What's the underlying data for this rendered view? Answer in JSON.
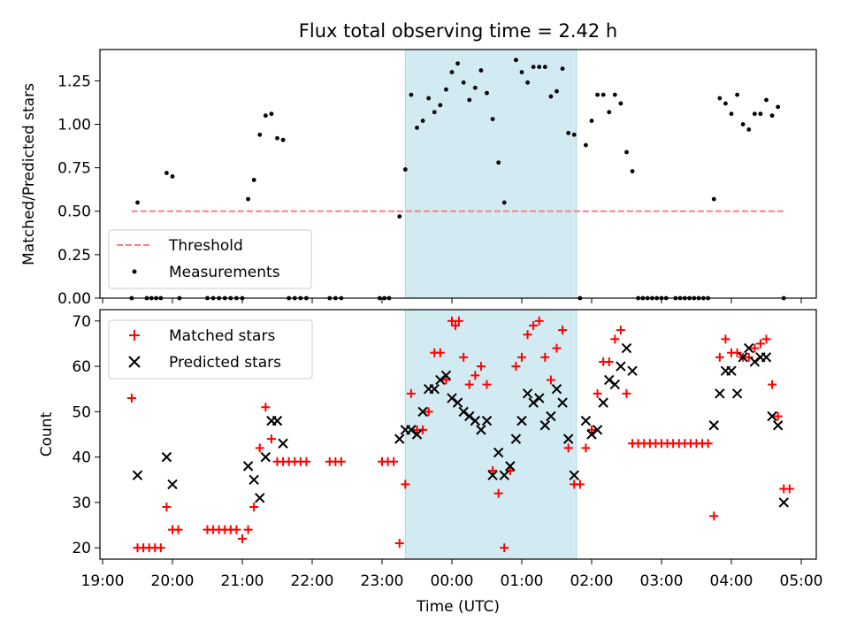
{
  "figure": {
    "title": "Flux total observing time = 2.42 h",
    "xlabel": "Time (UTC)",
    "x_ticks": [
      "19:00",
      "20:00",
      "21:00",
      "22:00",
      "23:00",
      "00:00",
      "01:00",
      "02:00",
      "03:00",
      "04:00",
      "05:00"
    ],
    "shaded_region": {
      "start": "23:20",
      "end": "01:47",
      "color": "#add8e6"
    }
  },
  "chart_data": [
    {
      "type": "scatter",
      "ylabel": "Matched/Predicted stars",
      "ylim": [
        0,
        1.43
      ],
      "y_ticks": [
        "0.00",
        "0.25",
        "0.50",
        "0.75",
        "1.00",
        "1.25"
      ],
      "legend": {
        "placement": "lower-left",
        "entries": [
          "Threshold",
          "Measurements"
        ]
      },
      "threshold": {
        "name": "Threshold",
        "value": 0.5,
        "x_range": [
          "19:25",
          "04:45"
        ],
        "color": "#ff7f7f",
        "style": "dashed"
      },
      "measurements": {
        "name": "Measurements",
        "color": "#000000",
        "points": [
          [
            "19:25",
            0.0
          ],
          [
            "19:30",
            0.55
          ],
          [
            "19:38",
            0.0
          ],
          [
            "19:42",
            0.0
          ],
          [
            "19:46",
            0.0
          ],
          [
            "19:50",
            0.0
          ],
          [
            "19:55",
            0.72
          ],
          [
            "20:00",
            0.7
          ],
          [
            "20:06",
            0.0
          ],
          [
            "20:30",
            0.0
          ],
          [
            "20:35",
            0.0
          ],
          [
            "20:40",
            0.0
          ],
          [
            "20:45",
            0.0
          ],
          [
            "20:50",
            0.0
          ],
          [
            "20:55",
            0.0
          ],
          [
            "21:00",
            0.0
          ],
          [
            "21:05",
            0.57
          ],
          [
            "21:10",
            0.68
          ],
          [
            "21:15",
            0.94
          ],
          [
            "21:20",
            1.05
          ],
          [
            "21:25",
            1.06
          ],
          [
            "21:30",
            0.92
          ],
          [
            "21:35",
            0.91
          ],
          [
            "21:40",
            0.0
          ],
          [
            "21:45",
            0.0
          ],
          [
            "21:50",
            0.0
          ],
          [
            "21:55",
            0.0
          ],
          [
            "22:15",
            0.0
          ],
          [
            "22:20",
            0.0
          ],
          [
            "22:25",
            0.0
          ],
          [
            "22:58",
            0.0
          ],
          [
            "23:02",
            0.0
          ],
          [
            "23:06",
            0.0
          ],
          [
            "23:15",
            0.47
          ],
          [
            "23:20",
            0.74
          ],
          [
            "23:25",
            1.17
          ],
          [
            "23:30",
            0.98
          ],
          [
            "23:35",
            1.02
          ],
          [
            "23:40",
            1.15
          ],
          [
            "23:45",
            1.07
          ],
          [
            "23:50",
            1.11
          ],
          [
            "23:55",
            1.2
          ],
          [
            "00:00",
            1.3
          ],
          [
            "00:05",
            1.35
          ],
          [
            "00:10",
            1.24
          ],
          [
            "00:15",
            1.14
          ],
          [
            "00:20",
            1.21
          ],
          [
            "00:25",
            1.31
          ],
          [
            "00:30",
            1.18
          ],
          [
            "00:35",
            1.03
          ],
          [
            "00:40",
            0.78
          ],
          [
            "00:45",
            0.55
          ],
          [
            "00:55",
            1.37
          ],
          [
            "01:00",
            1.3
          ],
          [
            "01:05",
            1.24
          ],
          [
            "01:10",
            1.33
          ],
          [
            "01:15",
            1.33
          ],
          [
            "01:20",
            1.33
          ],
          [
            "01:25",
            1.16
          ],
          [
            "01:30",
            1.19
          ],
          [
            "01:35",
            1.32
          ],
          [
            "01:40",
            0.95
          ],
          [
            "01:45",
            0.94
          ],
          [
            "01:50",
            0.0
          ],
          [
            "01:55",
            0.88
          ],
          [
            "02:00",
            1.02
          ],
          [
            "02:05",
            1.17
          ],
          [
            "02:10",
            1.17
          ],
          [
            "02:15",
            1.07
          ],
          [
            "02:20",
            1.17
          ],
          [
            "02:25",
            1.12
          ],
          [
            "02:30",
            0.84
          ],
          [
            "02:35",
            0.73
          ],
          [
            "02:40",
            0.0
          ],
          [
            "02:44",
            0.0
          ],
          [
            "02:48",
            0.0
          ],
          [
            "02:52",
            0.0
          ],
          [
            "02:56",
            0.0
          ],
          [
            "03:00",
            0.0
          ],
          [
            "03:04",
            0.0
          ],
          [
            "03:12",
            0.0
          ],
          [
            "03:16",
            0.0
          ],
          [
            "03:20",
            0.0
          ],
          [
            "03:24",
            0.0
          ],
          [
            "03:28",
            0.0
          ],
          [
            "03:32",
            0.0
          ],
          [
            "03:36",
            0.0
          ],
          [
            "03:40",
            0.0
          ],
          [
            "03:45",
            0.57
          ],
          [
            "03:50",
            1.15
          ],
          [
            "03:55",
            1.12
          ],
          [
            "04:00",
            1.06
          ],
          [
            "04:05",
            1.17
          ],
          [
            "04:10",
            1.0
          ],
          [
            "04:15",
            0.97
          ],
          [
            "04:20",
            1.06
          ],
          [
            "04:25",
            1.06
          ],
          [
            "04:30",
            1.14
          ],
          [
            "04:35",
            1.05
          ],
          [
            "04:40",
            1.1
          ],
          [
            "04:45",
            0.0
          ]
        ]
      }
    },
    {
      "type": "scatter",
      "ylabel": "Count",
      "ylim": [
        17.5,
        72.5
      ],
      "y_ticks": [
        "20",
        "30",
        "40",
        "50",
        "60",
        "70"
      ],
      "legend": {
        "placement": "top-left",
        "entries": [
          "Matched stars",
          "Predicted stars"
        ]
      },
      "series": [
        {
          "name": "Matched stars",
          "marker": "plus",
          "color": "#ff0000",
          "points": [
            [
              "19:25",
              53
            ],
            [
              "19:30",
              20
            ],
            [
              "19:35",
              20
            ],
            [
              "19:40",
              20
            ],
            [
              "19:45",
              20
            ],
            [
              "19:50",
              20
            ],
            [
              "19:55",
              29
            ],
            [
              "20:00",
              24
            ],
            [
              "20:05",
              24
            ],
            [
              "20:30",
              24
            ],
            [
              "20:35",
              24
            ],
            [
              "20:40",
              24
            ],
            [
              "20:45",
              24
            ],
            [
              "20:50",
              24
            ],
            [
              "20:55",
              24
            ],
            [
              "21:00",
              22
            ],
            [
              "21:05",
              24
            ],
            [
              "21:10",
              29
            ],
            [
              "21:15",
              42
            ],
            [
              "21:20",
              51
            ],
            [
              "21:25",
              44
            ],
            [
              "21:30",
              39
            ],
            [
              "21:35",
              39
            ],
            [
              "21:40",
              39
            ],
            [
              "21:45",
              39
            ],
            [
              "21:50",
              39
            ],
            [
              "21:55",
              39
            ],
            [
              "22:15",
              39
            ],
            [
              "22:20",
              39
            ],
            [
              "22:25",
              39
            ],
            [
              "23:00",
              39
            ],
            [
              "23:05",
              39
            ],
            [
              "23:10",
              39
            ],
            [
              "23:15",
              21
            ],
            [
              "23:20",
              34
            ],
            [
              "23:25",
              54
            ],
            [
              "23:30",
              46
            ],
            [
              "23:35",
              46
            ],
            [
              "23:40",
              50
            ],
            [
              "23:45",
              63
            ],
            [
              "23:50",
              63
            ],
            [
              "23:55",
              57
            ],
            [
              "00:00",
              70
            ],
            [
              "00:03",
              69
            ],
            [
              "00:06",
              70
            ],
            [
              "00:10",
              62
            ],
            [
              "00:15",
              56
            ],
            [
              "00:20",
              58
            ],
            [
              "00:25",
              60
            ],
            [
              "00:30",
              56
            ],
            [
              "00:35",
              37
            ],
            [
              "00:40",
              32
            ],
            [
              "00:45",
              20
            ],
            [
              "00:50",
              37
            ],
            [
              "00:55",
              60
            ],
            [
              "01:00",
              62
            ],
            [
              "01:05",
              67
            ],
            [
              "01:10",
              69
            ],
            [
              "01:15",
              70
            ],
            [
              "01:20",
              62
            ],
            [
              "01:25",
              57
            ],
            [
              "01:30",
              64
            ],
            [
              "01:35",
              68
            ],
            [
              "01:40",
              42
            ],
            [
              "01:45",
              34
            ],
            [
              "01:50",
              34
            ],
            [
              "01:55",
              42
            ],
            [
              "02:00",
              46
            ],
            [
              "02:05",
              54
            ],
            [
              "02:10",
              61
            ],
            [
              "02:15",
              61
            ],
            [
              "02:20",
              66
            ],
            [
              "02:25",
              68
            ],
            [
              "02:30",
              54
            ],
            [
              "02:35",
              43
            ],
            [
              "02:40",
              43
            ],
            [
              "02:45",
              43
            ],
            [
              "02:50",
              43
            ],
            [
              "02:55",
              43
            ],
            [
              "03:00",
              43
            ],
            [
              "03:05",
              43
            ],
            [
              "03:10",
              43
            ],
            [
              "03:15",
              43
            ],
            [
              "03:20",
              43
            ],
            [
              "03:25",
              43
            ],
            [
              "03:30",
              43
            ],
            [
              "03:35",
              43
            ],
            [
              "03:40",
              43
            ],
            [
              "03:45",
              27
            ],
            [
              "03:50",
              62
            ],
            [
              "03:55",
              66
            ],
            [
              "04:00",
              63
            ],
            [
              "04:05",
              63
            ],
            [
              "04:10",
              62
            ],
            [
              "04:15",
              62
            ],
            [
              "04:20",
              64
            ],
            [
              "04:25",
              65
            ],
            [
              "04:30",
              66
            ],
            [
              "04:35",
              56
            ],
            [
              "04:40",
              49
            ],
            [
              "04:45",
              33
            ],
            [
              "04:50",
              33
            ]
          ]
        },
        {
          "name": "Predicted stars",
          "marker": "x",
          "color": "#000000",
          "points": [
            [
              "19:30",
              36
            ],
            [
              "19:55",
              40
            ],
            [
              "20:00",
              34
            ],
            [
              "21:05",
              38
            ],
            [
              "21:10",
              35
            ],
            [
              "21:15",
              31
            ],
            [
              "21:20",
              40
            ],
            [
              "21:25",
              48
            ],
            [
              "21:30",
              48
            ],
            [
              "21:35",
              43
            ],
            [
              "23:15",
              44
            ],
            [
              "23:20",
              46
            ],
            [
              "23:25",
              46
            ],
            [
              "23:30",
              45
            ],
            [
              "23:35",
              50
            ],
            [
              "23:40",
              55
            ],
            [
              "23:45",
              55
            ],
            [
              "23:50",
              57
            ],
            [
              "23:55",
              58
            ],
            [
              "00:00",
              53
            ],
            [
              "00:05",
              52
            ],
            [
              "00:10",
              50
            ],
            [
              "00:15",
              49
            ],
            [
              "00:20",
              48
            ],
            [
              "00:25",
              46
            ],
            [
              "00:30",
              48
            ],
            [
              "00:35",
              36
            ],
            [
              "00:40",
              41
            ],
            [
              "00:45",
              36
            ],
            [
              "00:50",
              38
            ],
            [
              "00:55",
              44
            ],
            [
              "01:00",
              48
            ],
            [
              "01:05",
              54
            ],
            [
              "01:10",
              52
            ],
            [
              "01:15",
              53
            ],
            [
              "01:20",
              47
            ],
            [
              "01:25",
              49
            ],
            [
              "01:30",
              55
            ],
            [
              "01:35",
              52
            ],
            [
              "01:40",
              44
            ],
            [
              "01:45",
              36
            ],
            [
              "01:55",
              48
            ],
            [
              "02:00",
              45
            ],
            [
              "02:05",
              46
            ],
            [
              "02:10",
              52
            ],
            [
              "02:15",
              57
            ],
            [
              "02:20",
              56
            ],
            [
              "02:25",
              60
            ],
            [
              "02:30",
              64
            ],
            [
              "02:35",
              59
            ],
            [
              "03:45",
              47
            ],
            [
              "03:50",
              54
            ],
            [
              "03:55",
              59
            ],
            [
              "04:00",
              59
            ],
            [
              "04:05",
              54
            ],
            [
              "04:10",
              62
            ],
            [
              "04:15",
              64
            ],
            [
              "04:20",
              61
            ],
            [
              "04:25",
              62
            ],
            [
              "04:30",
              62
            ],
            [
              "04:35",
              49
            ],
            [
              "04:40",
              47
            ],
            [
              "04:45",
              30
            ]
          ]
        }
      ]
    }
  ]
}
